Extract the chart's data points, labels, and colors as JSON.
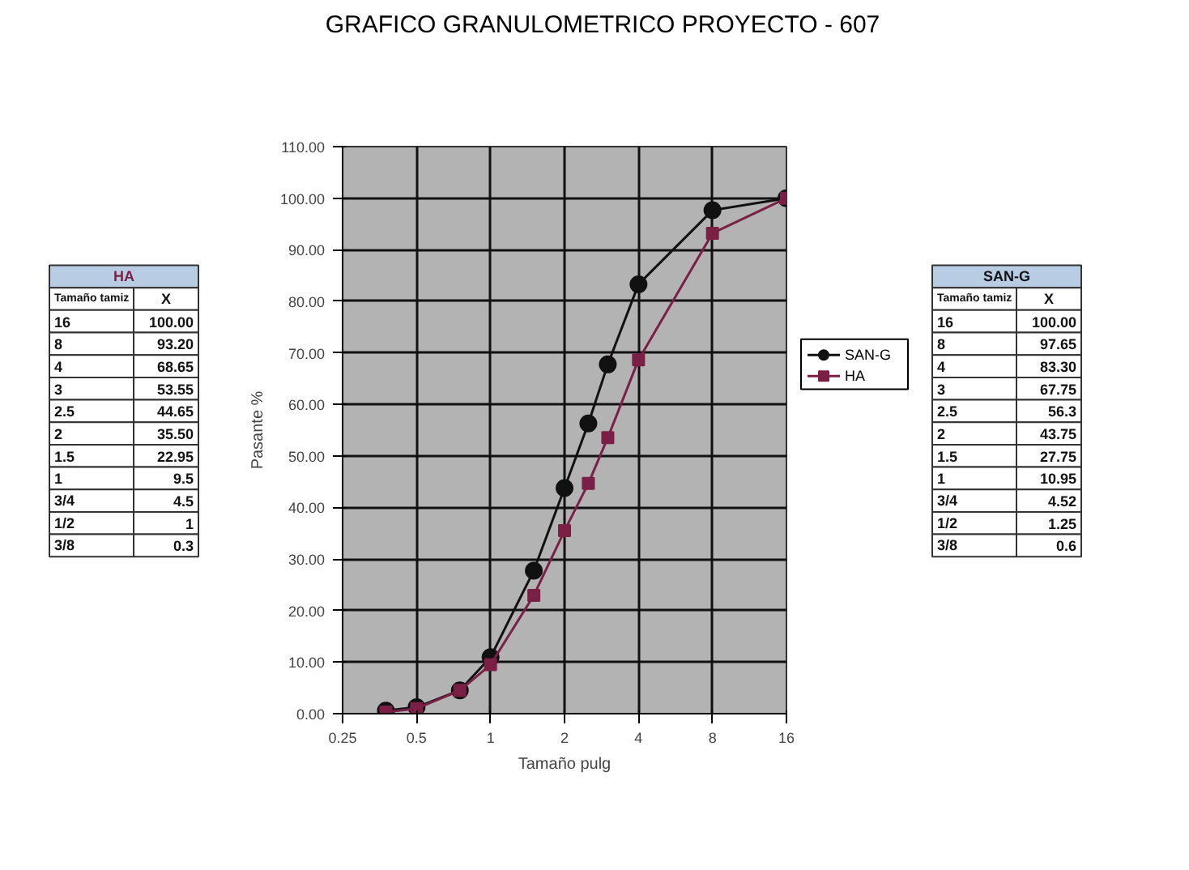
{
  "chart_data": {
    "type": "line",
    "title": "GRAFICO GRANULOMETRICO PROYECTO - 607",
    "xlabel": "Tamaño pulg",
    "ylabel": "Pasante %",
    "log": "x",
    "xlim": [
      0.25,
      16
    ],
    "xticks": [
      0.25,
      0.5,
      1,
      2,
      4,
      8,
      16
    ],
    "ylim": [
      0,
      110
    ],
    "yticks": [
      {
        "value": 0,
        "label": "0.00"
      },
      {
        "value": 10,
        "label": "10.00"
      },
      {
        "value": 20,
        "label": "20.00"
      },
      {
        "value": 30,
        "label": "30.00"
      },
      {
        "value": 40,
        "label": "40.00"
      },
      {
        "value": 50,
        "label": "50.00"
      },
      {
        "value": 60,
        "label": "60.00"
      },
      {
        "value": 70,
        "label": "70.00"
      },
      {
        "value": 80,
        "label": "80.00"
      },
      {
        "value": 90,
        "label": "90.00"
      },
      {
        "value": 100,
        "label": "100.00"
      },
      {
        "value": 110,
        "label": "110.00"
      }
    ],
    "grid": true,
    "legend": "right",
    "line_style": "solid",
    "x": [
      16,
      8,
      4,
      3,
      2.5,
      2,
      1.5,
      1,
      0.75,
      0.5,
      0.375
    ],
    "series": [
      {
        "name": "SAN-G",
        "color": "#111111",
        "marker": "circle",
        "values": [
          100.0,
          97.65,
          83.3,
          67.75,
          56.3,
          43.75,
          27.75,
          10.95,
          4.52,
          1.25,
          0.6
        ]
      },
      {
        "name": "HA",
        "color": "#7a1f45",
        "marker": "square",
        "values": [
          100.0,
          93.2,
          68.65,
          53.55,
          44.65,
          35.5,
          22.95,
          9.5,
          4.5,
          1,
          0.3
        ]
      }
    ],
    "annotations": [
      "Tamaño tamiz",
      "X",
      "16",
      "100.00",
      "8",
      "93.20",
      "4",
      "68.65",
      "3",
      "53.55",
      "2.5",
      "44.65",
      "2",
      "35.50",
      "1.5",
      "22.95",
      "1",
      "9.5",
      "3/4",
      "4.5",
      "1/2",
      "1",
      "3/8",
      "0.3",
      "16",
      "100.00",
      "8",
      "97.65",
      "4",
      "83.30",
      "3",
      "67.75",
      "2.5",
      "56.3",
      "2",
      "43.75",
      "1.5",
      "27.75",
      "1",
      "10.95",
      "3/4",
      "4.52",
      "1/2",
      "1.25",
      "3/8",
      "0.6"
    ]
  }
}
